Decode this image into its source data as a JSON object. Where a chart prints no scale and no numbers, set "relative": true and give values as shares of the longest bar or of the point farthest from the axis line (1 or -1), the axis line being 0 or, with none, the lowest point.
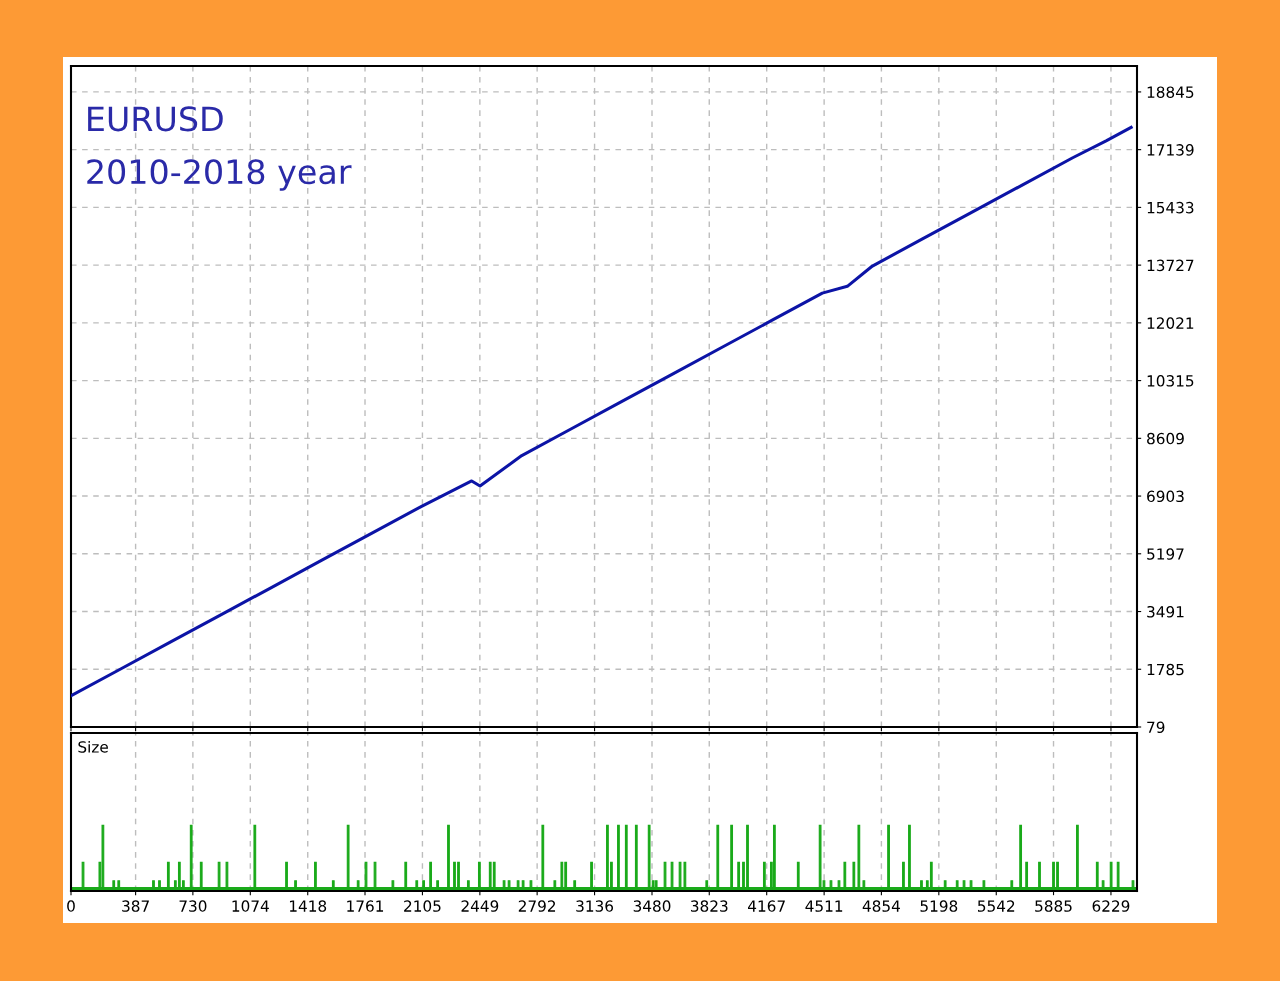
{
  "chart_data": [
    {
      "type": "line",
      "title": "EURUSD",
      "subtitle": "2010-2018 year",
      "tick_labels": "y",
      "grid": true,
      "xlim": [
        0,
        6385
      ],
      "xticks": [
        0,
        387,
        730,
        1074,
        1418,
        1761,
        2105,
        2449,
        2792,
        3136,
        3480,
        3823,
        4167,
        4511,
        4854,
        5198,
        5542,
        5885,
        6229
      ],
      "ylim": [
        79,
        19611
      ],
      "yticks": [
        79,
        1785,
        3491,
        5197,
        6903,
        8609,
        10315,
        12021,
        13727,
        15433,
        17139,
        18845
      ],
      "series": [
        {
          "color": "#0c14a6",
          "x": [
            0,
            300,
            600,
            900,
            1200,
            1500,
            1800,
            2100,
            2400,
            2450,
            2700,
            3000,
            3300,
            3600,
            3900,
            4200,
            4500,
            4650,
            4800,
            5100,
            5400,
            5700,
            6000,
            6200,
            6350
          ],
          "values": [
            1000,
            1800,
            2600,
            3400,
            4200,
            5000,
            5800,
            6600,
            7350,
            7200,
            8100,
            8900,
            9700,
            10500,
            11300,
            12100,
            12900,
            13100,
            13700,
            14500,
            15300,
            16100,
            16900,
            17400,
            17800
          ]
        }
      ]
    },
    {
      "type": "bar",
      "title": "Size",
      "relative": true,
      "tick_labels": "x",
      "grid": "x",
      "xlim": [
        0,
        6385
      ],
      "xticks": [
        0,
        387,
        730,
        1074,
        1418,
        1761,
        2105,
        2449,
        2792,
        3136,
        3480,
        3823,
        4167,
        4511,
        4854,
        5198,
        5542,
        5885,
        6229
      ],
      "series": [
        {
          "color": "#1aaa1a",
          "x": [
            72,
            173,
            191,
            256,
            286,
            494,
            530,
            583,
            625,
            649,
            673,
            714,
            720,
            780,
            887,
            934,
            1101,
            1291,
            1345,
            1464,
            1571,
            1660,
            1720,
            1767,
            1821,
            1928,
            2005,
            2071,
            2112,
            2154,
            2196,
            2261,
            2297,
            2321,
            2380,
            2446,
            2511,
            2535,
            2594,
            2624,
            2678,
            2708,
            2755,
            2826,
            2898,
            2940,
            2963,
            3017,
            3118,
            3213,
            3237,
            3279,
            3326,
            3386,
            3463,
            3487,
            3505,
            3558,
            3600,
            3648,
            3677,
            3808,
            3874,
            3957,
            3999,
            4028,
            4052,
            4153,
            4195,
            4213,
            4356,
            4487,
            4510,
            4552,
            4600,
            4635,
            4689,
            4719,
            4749,
            4897,
            4986,
            5022,
            5094,
            5129,
            5153,
            5236,
            5308,
            5349,
            5391,
            5468,
            5635,
            5688,
            5724,
            5801,
            5885,
            5909,
            6028,
            6147,
            6182,
            6230,
            6272,
            6361
          ],
          "values": [
            0.42,
            0.42,
            1,
            0.13,
            0.13,
            0.13,
            0.13,
            0.42,
            0.13,
            0.42,
            0.13,
            null,
            1,
            0.42,
            0.42,
            0.42,
            1,
            0.42,
            0.13,
            0.42,
            0.13,
            1,
            0.13,
            0.42,
            0.42,
            0.13,
            0.42,
            0.13,
            0.13,
            0.42,
            0.13,
            1,
            0.42,
            0.42,
            0.13,
            0.42,
            0.42,
            0.42,
            0.13,
            0.13,
            0.13,
            0.13,
            0.13,
            1,
            0.13,
            0.42,
            0.42,
            0.13,
            0.42,
            1,
            0.42,
            1,
            1,
            1,
            1,
            0.13,
            0.13,
            0.42,
            0.42,
            0.42,
            0.42,
            0.13,
            1,
            1,
            0.42,
            0.42,
            1,
            0.42,
            0.42,
            1,
            0.42,
            1,
            0.13,
            0.13,
            0.13,
            0.42,
            0.42,
            1,
            0.13,
            1,
            0.42,
            1,
            0.13,
            0.13,
            0.42,
            0.13,
            0.13,
            0.13,
            0.13,
            0.13,
            0.13,
            1,
            0.42,
            0.42,
            0.42,
            0.42,
            1,
            0.42,
            0.13,
            0.42,
            0.42,
            0.13
          ]
        }
      ]
    }
  ]
}
